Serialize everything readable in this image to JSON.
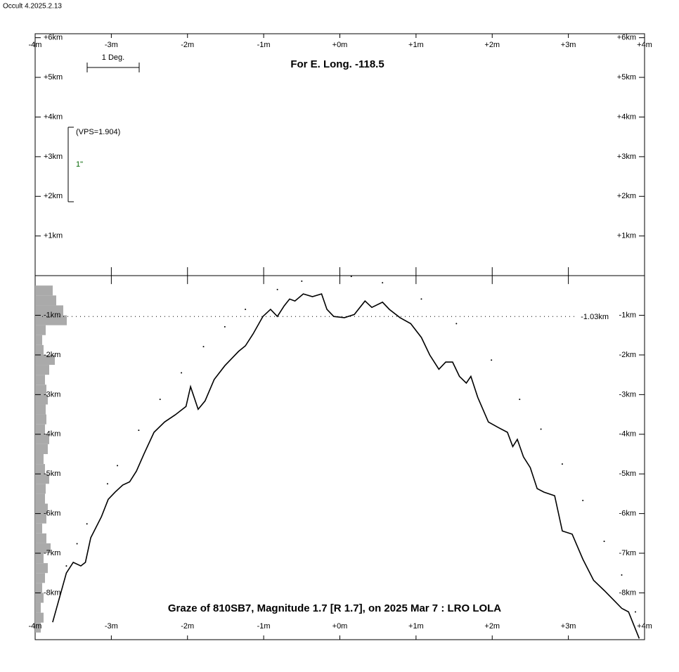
{
  "app_label": "Occult 4.2025.2.13",
  "chart_data": {
    "type": "line",
    "title": "Graze of  810SB7,  Magnitude 1.7 [R 1.7],  on 2025 Mar  7  :  LRO LOLA",
    "subtitle": "For E. Long. -118.5",
    "scale_label": "1 Deg.",
    "vps_label": "(VPS=1.904)",
    "vps_unit_label": "1\"",
    "xlim": [
      -4,
      4
    ],
    "ylim": [
      -9.18,
      6.1
    ],
    "xticks": [
      {
        "value": -4,
        "label": "-4m"
      },
      {
        "value": -3,
        "label": "-3m"
      },
      {
        "value": -2,
        "label": "-2m"
      },
      {
        "value": -1,
        "label": "-1m"
      },
      {
        "value": 0,
        "label": "+0m"
      },
      {
        "value": 1,
        "label": "+1m"
      },
      {
        "value": 2,
        "label": "+2m"
      },
      {
        "value": 3,
        "label": "+3m"
      },
      {
        "value": 4,
        "label": "+4m"
      }
    ],
    "yticks": [
      {
        "value": 6,
        "label": "+6km"
      },
      {
        "value": 5,
        "label": "+5km"
      },
      {
        "value": 4,
        "label": "+4km"
      },
      {
        "value": 3,
        "label": "+3km"
      },
      {
        "value": 2,
        "label": "+2km"
      },
      {
        "value": 1,
        "label": "+1km"
      },
      {
        "value": -1,
        "label": "-1km"
      },
      {
        "value": -2,
        "label": "-2km"
      },
      {
        "value": -3,
        "label": "-3km"
      },
      {
        "value": -4,
        "label": "-4km"
      },
      {
        "value": -5,
        "label": "-5km"
      },
      {
        "value": -6,
        "label": "-6km"
      },
      {
        "value": -7,
        "label": "-7km"
      },
      {
        "value": -8,
        "label": "-8km"
      }
    ],
    "reference_line": {
      "value": -1.03,
      "label": "-1.03km"
    },
    "series": [
      {
        "color": "#000000",
        "style": "solid",
        "x": [
          -3.77,
          -3.59,
          -3.5,
          -3.4,
          -3.34,
          -3.27,
          -3.13,
          -3.04,
          -2.95,
          -2.85,
          -2.76,
          -2.67,
          -2.57,
          -2.44,
          -2.3,
          -2.16,
          -2.02,
          -1.96,
          -1.86,
          -1.77,
          -1.65,
          -1.51,
          -1.33,
          -1.24,
          -1.14,
          -1.01,
          -0.91,
          -0.82,
          -0.73,
          -0.66,
          -0.59,
          -0.48,
          -0.36,
          -0.24,
          -0.17,
          -0.08,
          0.06,
          0.19,
          0.33,
          0.42,
          0.56,
          0.65,
          0.79,
          0.93,
          1.07,
          1.18,
          1.3,
          1.39,
          1.48,
          1.57,
          1.66,
          1.72,
          1.81,
          1.95,
          2.08,
          2.2,
          2.27,
          2.33,
          2.41,
          2.5,
          2.59,
          2.68,
          2.82,
          2.92,
          3.05,
          3.19,
          3.33,
          3.47,
          3.61,
          3.7,
          3.79,
          3.93
        ],
        "values": [
          -8.74,
          -7.5,
          -7.23,
          -7.32,
          -7.23,
          -6.61,
          -6.08,
          -5.64,
          -5.46,
          -5.28,
          -5.2,
          -4.93,
          -4.49,
          -3.95,
          -3.69,
          -3.51,
          -3.3,
          -2.8,
          -3.37,
          -3.16,
          -2.62,
          -2.27,
          -1.91,
          -1.77,
          -1.47,
          -1.03,
          -0.85,
          -1.03,
          -0.76,
          -0.59,
          -0.64,
          -0.46,
          -0.53,
          -0.46,
          -0.85,
          -1.03,
          -1.06,
          -0.98,
          -0.64,
          -0.8,
          -0.67,
          -0.85,
          -1.06,
          -1.21,
          -1.56,
          -2.0,
          -2.36,
          -2.18,
          -2.18,
          -2.54,
          -2.71,
          -2.54,
          -3.07,
          -3.69,
          -3.83,
          -3.95,
          -4.31,
          -4.13,
          -4.57,
          -4.84,
          -5.37,
          -5.46,
          -5.55,
          -6.44,
          -6.52,
          -7.15,
          -7.68,
          -7.94,
          -8.21,
          -8.39,
          -8.48,
          -9.15
        ]
      },
      {
        "color": "#000000",
        "style": "dotted",
        "x": [
          -3.59,
          -3.45,
          -3.32,
          -3.05,
          -2.92,
          -2.64,
          -2.36,
          -2.08,
          -1.79,
          -1.51,
          -1.24,
          -0.82,
          -0.5,
          0.15,
          0.56,
          1.07,
          1.53,
          1.99,
          2.36,
          2.64,
          2.92,
          3.19,
          3.47,
          3.7,
          3.88
        ],
        "values": [
          -7.32,
          -6.76,
          -6.26,
          -5.25,
          -4.79,
          -3.9,
          -3.12,
          -2.45,
          -1.79,
          -1.29,
          -0.85,
          -0.35,
          -0.14,
          -0.02,
          -0.18,
          -0.59,
          -1.21,
          -2.13,
          -3.12,
          -3.87,
          -4.75,
          -5.67,
          -6.7,
          -7.55,
          -8.48
        ]
      }
    ],
    "histogram": {
      "color": "#aaaaaa",
      "bins": [
        -0.25,
        -0.5,
        -0.75,
        -1.0,
        -1.25,
        -1.5,
        -1.75,
        -2.0,
        -2.25,
        -2.5,
        -2.75,
        -3.0,
        -3.25,
        -3.5,
        -3.75,
        -4.0,
        -4.25,
        -4.5,
        -4.75,
        -5.0,
        -5.25,
        -5.5,
        -5.75,
        -6.0,
        -6.25,
        -6.5,
        -6.75,
        -7.0,
        -7.25,
        -7.5,
        -7.75,
        -8.0,
        -8.25,
        -8.5,
        -8.75,
        -9.0
      ],
      "values": [
        25,
        30,
        40,
        45,
        15,
        10,
        12,
        28,
        20,
        14,
        16,
        18,
        15,
        16,
        14,
        20,
        18,
        12,
        14,
        20,
        15,
        14,
        18,
        16,
        10,
        16,
        22,
        12,
        18,
        14,
        10,
        12,
        8,
        12,
        8
      ]
    }
  }
}
